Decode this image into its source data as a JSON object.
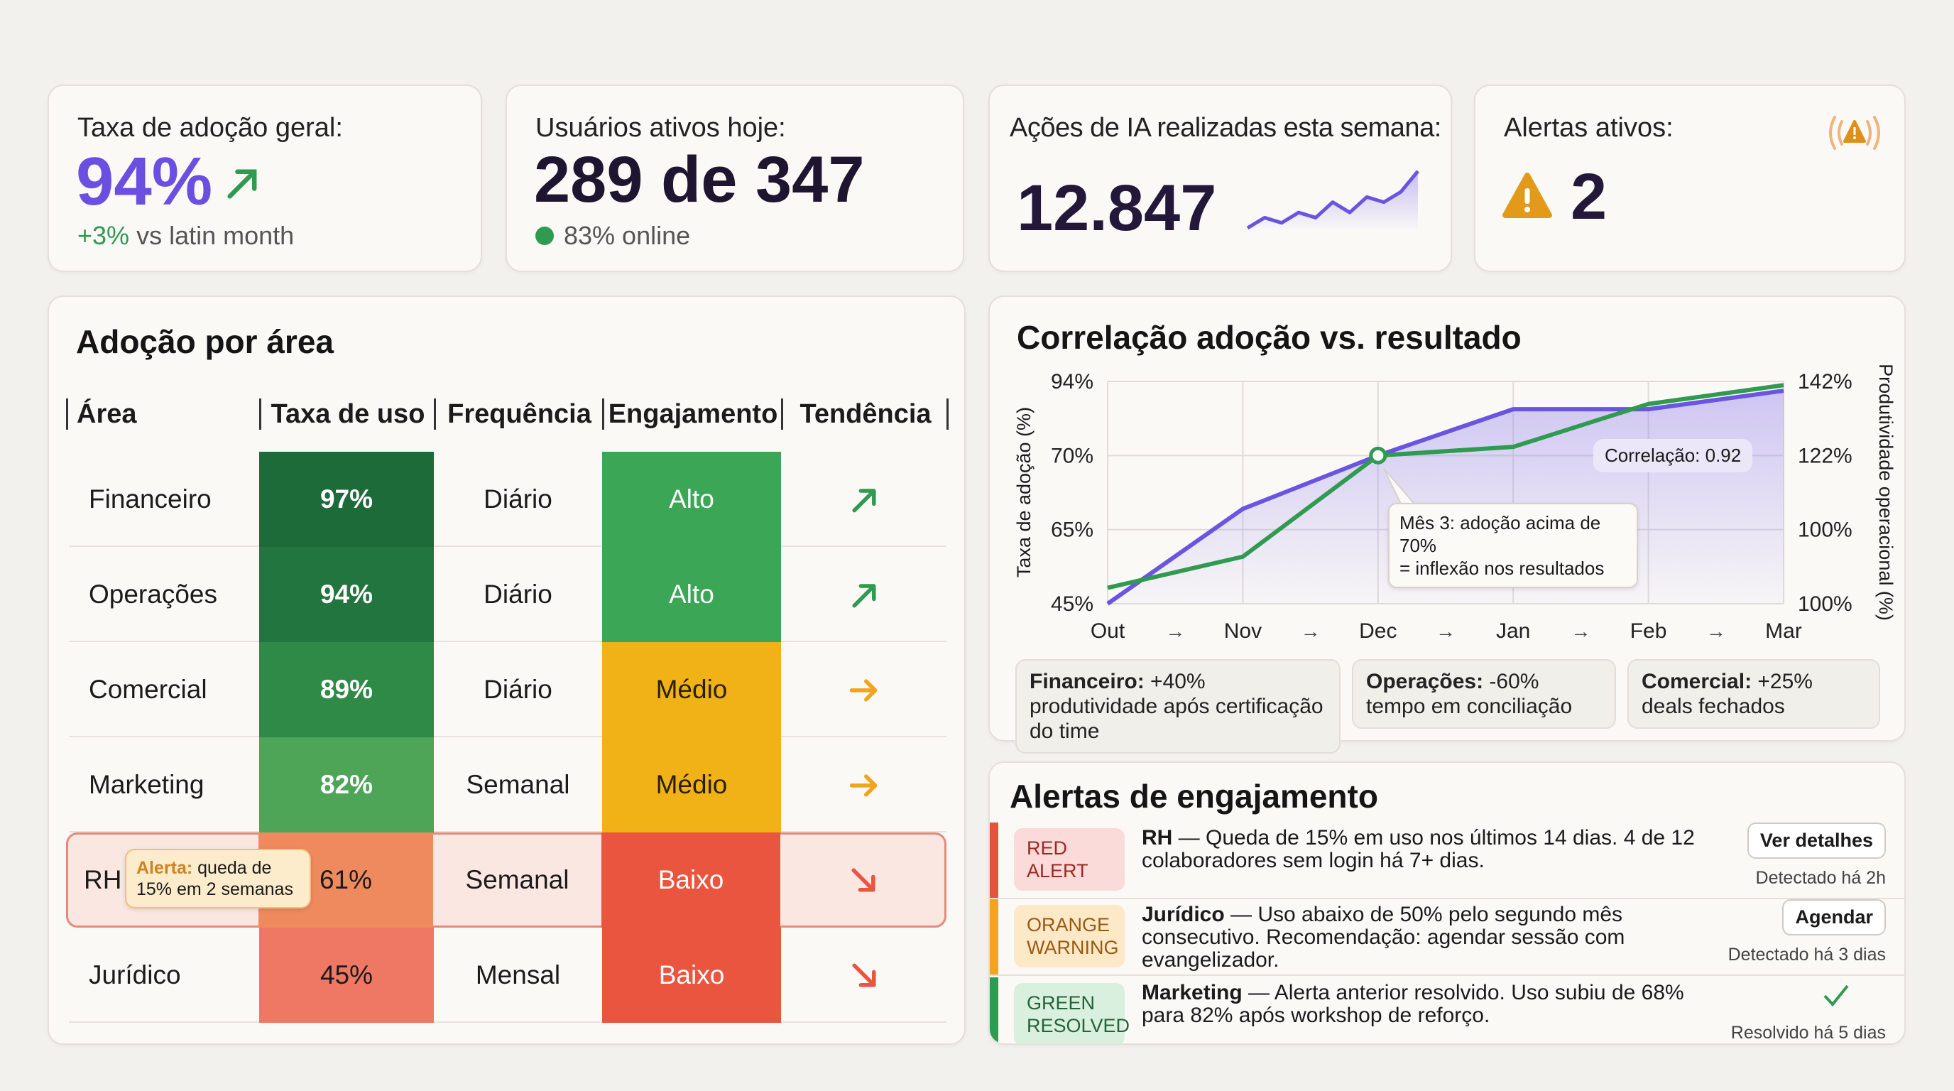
{
  "kpis": {
    "adoption": {
      "label": "Taxa de adoção geral:",
      "value": "94%",
      "delta": "+3%",
      "delta_suffix": " vs latin month",
      "trend_icon": "arrow-up-right"
    },
    "active_users": {
      "label": "Usuários ativos hoje:",
      "value": "289 de 347",
      "status": "83% online"
    },
    "ai_actions": {
      "label": "Ações de IA realizadas esta semana:",
      "value": "12.847",
      "sparkline": [
        3,
        5,
        4,
        6,
        5,
        8,
        6,
        9,
        8,
        10,
        14
      ]
    },
    "alerts": {
      "label": "Alertas ativos:",
      "value": "2",
      "icon": "warning-broadcast"
    }
  },
  "table": {
    "title": "Adoção por área",
    "headers": [
      "Área",
      "Taxa de uso",
      "Frequência",
      "Engajamento",
      "Tendência"
    ],
    "rows": [
      {
        "area": "Financeiro",
        "usage": "97%",
        "freq": "Diário",
        "eng": "Alto",
        "trend": "up"
      },
      {
        "area": "Operações",
        "usage": "94%",
        "freq": "Diário",
        "eng": "Alto",
        "trend": "up"
      },
      {
        "area": "Comercial",
        "usage": "89%",
        "freq": "Diário",
        "eng": "Médio",
        "trend": "flat"
      },
      {
        "area": "Marketing",
        "usage": "82%",
        "freq": "Semanal",
        "eng": "Médio",
        "trend": "flat"
      },
      {
        "area": "RH",
        "usage": "61%",
        "freq": "Semanal",
        "eng": "Baixo",
        "trend": "down",
        "alert_label": "Alerta:",
        "alert_text": " queda de 15% em 2 semanas"
      },
      {
        "area": "Jurídico",
        "usage": "45%",
        "freq": "Mensal",
        "eng": "Baixo",
        "trend": "down"
      }
    ],
    "colors": {
      "97%": "#1e6b3a",
      "94%": "#23753f",
      "89%": "#2f8a48",
      "82%": "#4ea457",
      "61%": "#ee8a5e",
      "45%": "#ef7865",
      "Alto": "#3ba656",
      "Médio": "#f0b216",
      "Baixo": "#e9553f"
    }
  },
  "chart_data": {
    "type": "line",
    "title": "Correlação adoção vs. resultado",
    "ylabel": "Taxa de adoção (%)",
    "y2label": "Produtividade operacional (%)",
    "categories": [
      "Out",
      "Nov",
      "Dec",
      "Jan",
      "Feb",
      "Mar"
    ],
    "separator": "→",
    "yticks": [
      "94%",
      "70%",
      "65%",
      "45%"
    ],
    "y2ticks": [
      "142%",
      "122%",
      "100%",
      "100%"
    ],
    "ytick_values": [
      45,
      65,
      70,
      94
    ],
    "series": [
      {
        "values": [
          45,
          66.4,
          70,
          85,
          85,
          91
        ],
        "color": "#6a55e0",
        "fill": true
      },
      {
        "values": [
          49.3,
          57.7,
          70,
          72.8,
          86.7,
          92.8
        ],
        "color": "#2f9a50"
      }
    ],
    "grid": true,
    "marker_category": "Dec",
    "annotation": "Mês 3: adoção acima de 70%\n= inflexão nos resultados",
    "correlation_label": "Correlação: 0.92"
  },
  "insights": [
    {
      "bold": "Financeiro:",
      "text": " +40% produtividade após certificação do time"
    },
    {
      "bold": "Operações:",
      "text": " -60% tempo em conciliação"
    },
    {
      "bold": "Comercial:",
      "text": " +25% deals fechados"
    }
  ],
  "alerts": {
    "title": "Alertas de engajamento",
    "items": [
      {
        "badge1": "RED",
        "badge2": "ALERT",
        "color": "#e5533d",
        "badge_bg": "#fbdada",
        "badge_fg": "#9b2a22",
        "bold": "RH",
        "text": " — Queda de 15% em uso nos últimos 14 dias. 4 de 12 colaboradores sem login há 7+ dias.",
        "button": "Ver detalhes",
        "meta": "Detectado há 2h"
      },
      {
        "badge1": "ORANGE",
        "badge2": "WARNING",
        "color": "#f0a51c",
        "badge_bg": "#fde8c8",
        "badge_fg": "#9a5a10",
        "bold": "Jurídico",
        "text": " — Uso abaixo de 50% pelo segundo mês consecutivo. Recomendação: agendar sessão com evangelizador.",
        "button": "Agendar",
        "meta": "Detectado há 3 dias"
      },
      {
        "badge1": "GREEN",
        "badge2": "RESOLVED",
        "color": "#2f9a50",
        "badge_bg": "#d8f0dd",
        "badge_fg": "#24633a",
        "bold": "Marketing",
        "text": " — Alerta anterior resolvido. Uso subiu de 68% para 82% após workshop de reforço.",
        "icon": "checkmark",
        "meta": "Resolvido há 5 dias"
      }
    ]
  }
}
